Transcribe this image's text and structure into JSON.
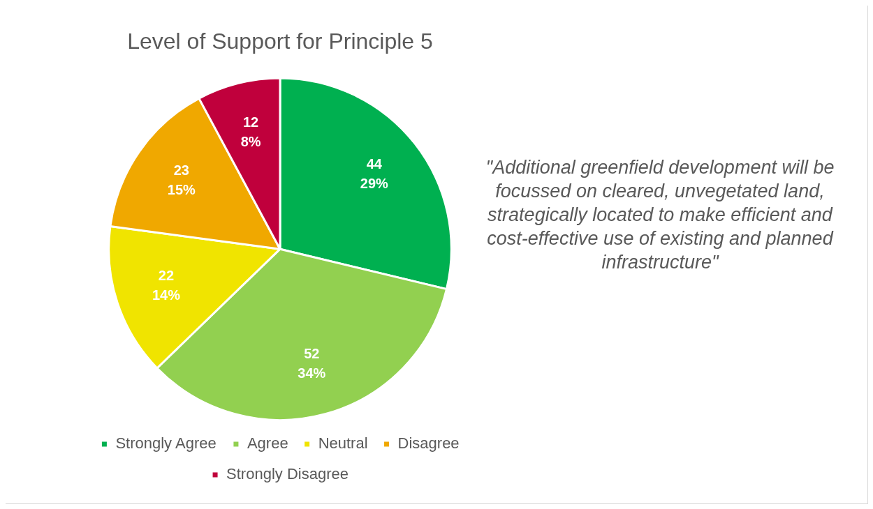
{
  "chart_data": {
    "type": "pie",
    "title": "Level of Support for Principle 5",
    "categories": [
      "Strongly Agree",
      "Agree",
      "Neutral",
      "Disagree",
      "Strongly Disagree"
    ],
    "values": [
      44,
      52,
      22,
      23,
      12
    ],
    "colors": [
      "#00b050",
      "#92d050",
      "#f0e400",
      "#f0a800",
      "#c0003c"
    ],
    "value_labels": [
      "44\n29%",
      "52\n34%",
      "22\n14%",
      "23\n15%",
      "12\n8%"
    ],
    "annotations": [
      "\"Additional greenfield development will be focussed on cleared, unvegetated land, strategically located to make efficient and cost-effective use of existing and planned infrastructure\""
    ],
    "legend": "bottom"
  }
}
